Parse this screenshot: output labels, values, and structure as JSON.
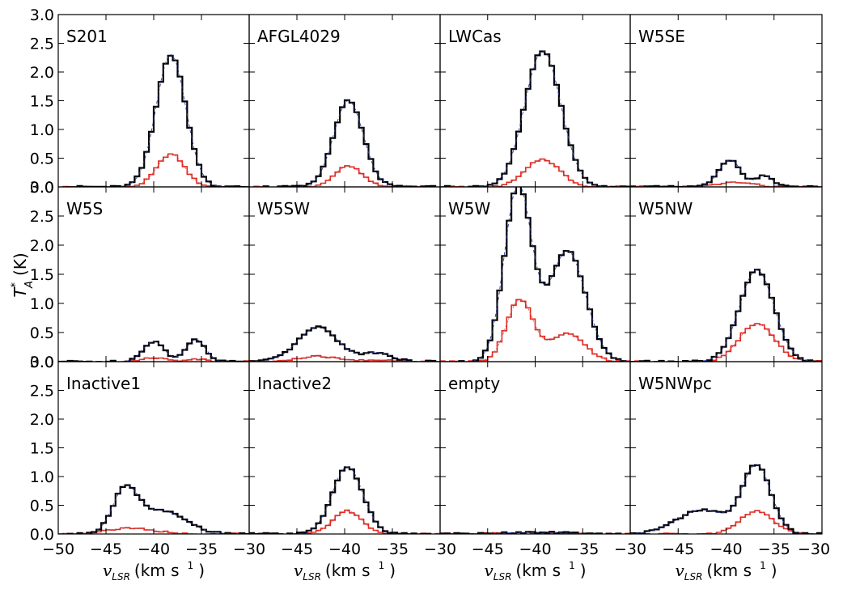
{
  "chart_data": {
    "type": "line",
    "layout": "3x4 grid of spectra panels",
    "ylabel": "T*A (K)",
    "ylabel_main": "T",
    "ylabel_sup": "*",
    "ylabel_sub": "A",
    "ylabel_unit": "(K)",
    "xlabel_main": "v",
    "xlabel_sub": "LSR",
    "xlabel_unit": "(km s",
    "xlabel_exp": "1",
    "xlabel_close": ")",
    "ylim": [
      0,
      3.0
    ],
    "yticks": [
      "0.0",
      "0.5",
      "1.0",
      "1.5",
      "2.0",
      "2.5",
      "3.0"
    ],
    "x_tick_labels_first": [
      "−50",
      "−45",
      "−40",
      "−35"
    ],
    "x_tick_labels_other": [
      "−30",
      "−45",
      "−40",
      "−35"
    ],
    "x_tick_label_last": "−30",
    "xlim": [
      -50,
      -30
    ],
    "colors": {
      "main": "#000000",
      "fit": "#2b3a9a",
      "secondary": "#e8231b"
    },
    "series_note": "black = main line spectrum, red = secondary line spectrum, thin blue dashed = fit",
    "panels": [
      {
        "name": "S201",
        "main": [
          {
            "c": -38.2,
            "a": 2.3,
            "w": 1.55
          }
        ],
        "red": [
          {
            "c": -38.2,
            "a": 0.57,
            "w": 1.45
          }
        ]
      },
      {
        "name": "AFGL4029",
        "main": [
          {
            "c": -39.6,
            "a": 1.5,
            "w": 1.55
          }
        ],
        "red": [
          {
            "c": -39.6,
            "a": 0.36,
            "w": 1.45
          }
        ]
      },
      {
        "name": "LWCas",
        "main": [
          {
            "c": -39.2,
            "a": 2.37,
            "w": 1.9
          }
        ],
        "red": [
          {
            "c": -39.2,
            "a": 0.48,
            "w": 1.8
          }
        ]
      },
      {
        "name": "W5SE",
        "main": [
          {
            "c": -39.6,
            "a": 0.47,
            "w": 1.15
          },
          {
            "c": -36.0,
            "a": 0.2,
            "w": 0.85
          }
        ],
        "red": [
          {
            "c": -39.0,
            "a": 0.08,
            "w": 1.8
          }
        ]
      },
      {
        "name": "W5S",
        "main": [
          {
            "c": -40.0,
            "a": 0.35,
            "w": 1.1
          },
          {
            "c": -35.6,
            "a": 0.38,
            "w": 1.0
          }
        ],
        "red": [
          {
            "c": -40.0,
            "a": 0.07,
            "w": 1.2
          },
          {
            "c": -35.6,
            "a": 0.05,
            "w": 1.0
          }
        ]
      },
      {
        "name": "W5SW",
        "main": [
          {
            "c": -42.8,
            "a": 0.59,
            "w": 2.1
          },
          {
            "c": -36.6,
            "a": 0.15,
            "w": 1.5
          }
        ],
        "red": [
          {
            "c": -42.8,
            "a": 0.09,
            "w": 2.0
          },
          {
            "c": -36.6,
            "a": 0.03,
            "w": 1.5
          }
        ]
      },
      {
        "name": "W5W",
        "main": [
          {
            "c": -41.8,
            "a": 3.0,
            "w": 1.45
          },
          {
            "c": -36.6,
            "a": 1.9,
            "w": 1.9
          }
        ],
        "red": [
          {
            "c": -41.6,
            "a": 1.06,
            "w": 1.4
          },
          {
            "c": -36.6,
            "a": 0.48,
            "w": 1.8
          }
        ]
      },
      {
        "name": "W5NW",
        "main": [
          {
            "c": -36.8,
            "a": 1.57,
            "w": 1.8
          }
        ],
        "red": [
          {
            "c": -36.8,
            "a": 0.65,
            "w": 1.85
          }
        ]
      },
      {
        "name": "Inactive1",
        "main": [
          {
            "c": -43.0,
            "a": 0.72,
            "w": 1.3
          },
          {
            "c": -39.2,
            "a": 0.4,
            "w": 2.5
          }
        ],
        "red": [
          {
            "c": -42.5,
            "a": 0.1,
            "w": 2.5
          }
        ]
      },
      {
        "name": "Inactive2",
        "main": [
          {
            "c": -39.7,
            "a": 1.17,
            "w": 1.6
          }
        ],
        "red": [
          {
            "c": -39.7,
            "a": 0.4,
            "w": 1.5
          }
        ]
      },
      {
        "name": "empty",
        "main": [
          {
            "c": -40.0,
            "a": 0.03,
            "w": 3.0
          }
        ],
        "red": [
          {
            "c": -40.0,
            "a": 0.02,
            "w": 3.0
          }
        ]
      },
      {
        "name": "W5NWpc",
        "main": [
          {
            "c": -42.5,
            "a": 0.42,
            "w": 2.6
          },
          {
            "c": -36.8,
            "a": 1.17,
            "w": 1.5
          }
        ],
        "red": [
          {
            "c": -36.8,
            "a": 0.4,
            "w": 1.7
          }
        ]
      }
    ]
  }
}
